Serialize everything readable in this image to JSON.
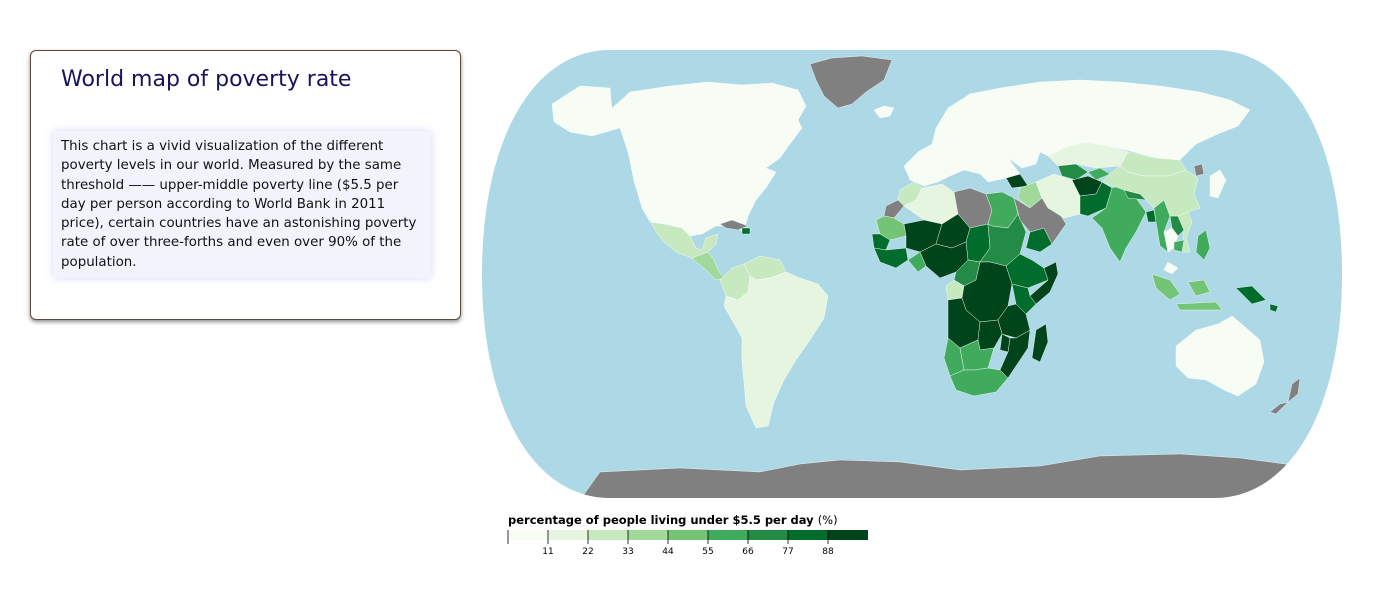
{
  "card": {
    "title": "World map of poverty rate",
    "description": "This chart is a vivid visualization of the different poverty levels in our world. Measured by the same threshold —— upper-middle poverty line ($5.5 per day per person according to World Bank in 2011 price), certain countries have an astonishing poverty rate of over three-forths and even over 90% of the population."
  },
  "map": {
    "projection": "Natural Earth",
    "colors": {
      "ocean": "#add8e6",
      "no_data": "#808080",
      "border": "#ffffff"
    }
  },
  "legend": {
    "title": "percentage of people living under $5.5 per day",
    "unit": "(%)",
    "ticks": [
      "11",
      "22",
      "33",
      "44",
      "55",
      "66",
      "77",
      "88"
    ],
    "colors": [
      "#f7fcf5",
      "#e5f5e0",
      "#c7e9c0",
      "#a1d99b",
      "#74c476",
      "#41ab5d",
      "#238b45",
      "#006d2c",
      "#00441b"
    ]
  },
  "chart_data": {
    "type": "choropleth",
    "title": "World map of poverty rate",
    "value_label": "percentage of people living under $5.5 per day (%)",
    "domain": [
      0,
      99
    ],
    "thresholds": [
      11,
      22,
      33,
      44,
      55,
      66,
      77,
      88
    ],
    "no_data_color": "#808080",
    "regions": [
      {
        "name": "Canada",
        "value": 1
      },
      {
        "name": "United States",
        "value": 2
      },
      {
        "name": "Alaska",
        "value": 2
      },
      {
        "name": "Mexico",
        "value": 28
      },
      {
        "name": "Central America",
        "value": 40
      },
      {
        "name": "Cuba",
        "value": null
      },
      {
        "name": "Haiti",
        "value": 85
      },
      {
        "name": "Colombia",
        "value": 28
      },
      {
        "name": "Venezuela",
        "value": 30
      },
      {
        "name": "South America",
        "value": 20
      },
      {
        "name": "Greenland",
        "value": null
      },
      {
        "name": "Iceland",
        "value": 1
      },
      {
        "name": "Europe",
        "value": 2
      },
      {
        "name": "Russia",
        "value": 3
      },
      {
        "name": "Morocco",
        "value": 22
      },
      {
        "name": "Western Sahara",
        "value": null
      },
      {
        "name": "Algeria",
        "value": 15
      },
      {
        "name": "Libya",
        "value": null
      },
      {
        "name": "Egypt",
        "value": 60
      },
      {
        "name": "Mauritania",
        "value": 50
      },
      {
        "name": "Mali",
        "value": 90
      },
      {
        "name": "Niger",
        "value": 92
      },
      {
        "name": "Chad",
        "value": 85
      },
      {
        "name": "Sudan",
        "value": 75
      },
      {
        "name": "Senegal",
        "value": 78
      },
      {
        "name": "Guinea",
        "value": 85
      },
      {
        "name": "Ghana",
        "value": 60
      },
      {
        "name": "Nigeria",
        "value": 92
      },
      {
        "name": "Cameroon",
        "value": 70
      },
      {
        "name": "Gabon",
        "value": 28
      },
      {
        "name": "Ethiopia",
        "value": 87
      },
      {
        "name": "Somalia",
        "value": 88
      },
      {
        "name": "DR Congo",
        "value": 97
      },
      {
        "name": "Kenya",
        "value": 80
      },
      {
        "name": "Tanzania",
        "value": 92
      },
      {
        "name": "Angola",
        "value": 90
      },
      {
        "name": "Zambia",
        "value": 90
      },
      {
        "name": "Mozambique",
        "value": 92
      },
      {
        "name": "Malawi",
        "value": 97
      },
      {
        "name": "Madagascar",
        "value": 97
      },
      {
        "name": "Namibia",
        "value": 55
      },
      {
        "name": "Botswana",
        "value": 58
      },
      {
        "name": "South Africa",
        "value": 55
      },
      {
        "name": "Yemen",
        "value": 85
      },
      {
        "name": "Syria",
        "value": 90
      },
      {
        "name": "Iraq",
        "value": 40
      },
      {
        "name": "Saudi Arabia",
        "value": null
      },
      {
        "name": "Iran",
        "value": 12
      },
      {
        "name": "Turkey",
        "value": 10
      },
      {
        "name": "Kazakhstan",
        "value": 15
      },
      {
        "name": "Uzbekistan",
        "value": 70
      },
      {
        "name": "Kyrgyzstan",
        "value": 60
      },
      {
        "name": "Afghanistan",
        "value": 95
      },
      {
        "name": "Pakistan",
        "value": 80
      },
      {
        "name": "India",
        "value": 55
      },
      {
        "name": "Nepal",
        "value": 75
      },
      {
        "name": "Bangladesh",
        "value": 85
      },
      {
        "name": "Myanmar",
        "value": 55
      },
      {
        "name": "Laos",
        "value": 75
      },
      {
        "name": "Thailand",
        "value": 10
      },
      {
        "name": "Vietnam",
        "value": 25
      },
      {
        "name": "Cambodia",
        "value": 60
      },
      {
        "name": "Malaysia",
        "value": 5
      },
      {
        "name": "Mongolia",
        "value": 30
      },
      {
        "name": "China",
        "value": 25
      },
      {
        "name": "North Korea",
        "value": null
      },
      {
        "name": "Japan",
        "value": 1
      },
      {
        "name": "Philippines",
        "value": 55
      },
      {
        "name": "Indonesia",
        "value": 50
      },
      {
        "name": "Papua New Guinea",
        "value": 80
      },
      {
        "name": "Solomon Islands",
        "value": 85
      },
      {
        "name": "Australia",
        "value": 1
      },
      {
        "name": "New Zealand",
        "value": null
      },
      {
        "name": "Antarctica",
        "value": null
      }
    ]
  }
}
